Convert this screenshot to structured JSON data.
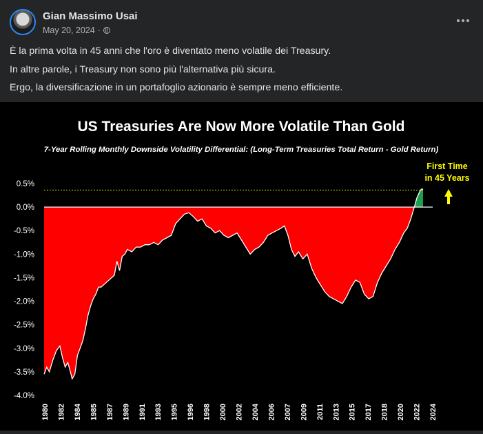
{
  "post": {
    "author": "Gian Massimo Usai",
    "date": "May 20, 2024",
    "separator": "·",
    "lines": [
      "È la prima volta in 45 anni che l'oro è diventato meno volatile dei Treasury.",
      "In altre parole, i Treasury non sono più l'alternativa più sicura.",
      "Ergo, la diversificazione in un portafoglio azionario è sempre meno efficiente."
    ]
  },
  "icons": {
    "globe": "globe-icon",
    "more": "more-options-icon",
    "arrow": "up-arrow-icon"
  },
  "chart_data": {
    "type": "area",
    "title": "US Treasuries Are Now More Volatile Than Gold",
    "subtitle": "7-Year Rolling Monthly Downside Volatility Differential: (Long-Term Treasuries Total Return - Gold Return)",
    "annotation": [
      "First Time",
      "in 45 Years"
    ],
    "x_tick_labels": [
      "1980",
      "1982",
      "1984",
      "1985",
      "1987",
      "1989",
      "1991",
      "1993",
      "1995",
      "1996",
      "1998",
      "2000",
      "2002",
      "2004",
      "2006",
      "2007",
      "2009",
      "2011",
      "2013",
      "2015",
      "2017",
      "2018",
      "2020",
      "2022",
      "2024"
    ],
    "y_ticks": [
      0.5,
      0.0,
      -0.5,
      -1.0,
      -1.5,
      -2.0,
      -2.5,
      -3.0,
      -3.5,
      -4.0
    ],
    "y_tick_labels": [
      "0.5%",
      "0.0%",
      "-0.5%",
      "-1.0%",
      "-1.5%",
      "-2.0%",
      "-2.5%",
      "-3.0%",
      "-3.5%",
      "-4.0%"
    ],
    "ylim": [
      -4.0,
      0.5
    ],
    "xlim": [
      1980,
      2024.3
    ],
    "reference_line": 0.36,
    "colors": {
      "negative": "#ff0000",
      "positive": "#1e9e4e",
      "annotation": "#ffff00",
      "reference": "#e6e600"
    },
    "series": [
      {
        "name": "Volatility Differential",
        "x": [
          1980.0,
          1980.3,
          1980.6,
          1981.0,
          1981.4,
          1981.8,
          1982.1,
          1982.4,
          1982.7,
          1983.0,
          1983.2,
          1983.5,
          1983.8,
          1984.1,
          1984.4,
          1984.7,
          1985.0,
          1985.3,
          1985.6,
          1985.9,
          1986.2,
          1986.5,
          1986.8,
          1987.1,
          1987.4,
          1987.7,
          1988.0,
          1988.3,
          1988.6,
          1988.9,
          1989.2,
          1989.5,
          1990.0,
          1990.5,
          1991.0,
          1991.5,
          1992.0,
          1992.5,
          1993.0,
          1993.5,
          1994.0,
          1994.5,
          1995.0,
          1995.5,
          1996.0,
          1996.5,
          1997.0,
          1997.5,
          1998.0,
          1998.5,
          1999.0,
          1999.5,
          2000.0,
          2000.5,
          2001.0,
          2001.5,
          2002.0,
          2002.5,
          2003.0,
          2003.5,
          2004.0,
          2004.5,
          2005.0,
          2005.5,
          2006.0,
          2006.5,
          2007.0,
          2007.4,
          2007.8,
          2008.2,
          2008.6,
          2009.0,
          2009.5,
          2010.0,
          2010.5,
          2011.0,
          2011.5,
          2012.0,
          2012.5,
          2013.0,
          2013.5,
          2014.0,
          2014.5,
          2015.0,
          2015.5,
          2016.0,
          2016.5,
          2017.0,
          2017.5,
          2018.0,
          2018.5,
          2019.0,
          2019.5,
          2020.0,
          2020.5,
          2021.0,
          2021.4,
          2021.8,
          2022.2,
          2022.5,
          2022.8,
          2023.0,
          2023.2
        ],
        "values": [
          -3.55,
          -3.4,
          -3.5,
          -3.25,
          -3.05,
          -2.95,
          -3.2,
          -3.4,
          -3.3,
          -3.5,
          -3.65,
          -3.55,
          -3.15,
          -3.0,
          -2.85,
          -2.6,
          -2.3,
          -2.1,
          -1.95,
          -1.85,
          -1.7,
          -1.7,
          -1.65,
          -1.6,
          -1.55,
          -1.5,
          -1.45,
          -1.15,
          -1.35,
          -1.05,
          -1.0,
          -0.9,
          -0.95,
          -0.85,
          -0.85,
          -0.8,
          -0.8,
          -0.75,
          -0.8,
          -0.7,
          -0.65,
          -0.6,
          -0.35,
          -0.25,
          -0.15,
          -0.12,
          -0.2,
          -0.3,
          -0.25,
          -0.4,
          -0.45,
          -0.55,
          -0.5,
          -0.6,
          -0.65,
          -0.6,
          -0.55,
          -0.7,
          -0.85,
          -1.0,
          -0.9,
          -0.85,
          -0.75,
          -0.6,
          -0.55,
          -0.5,
          -0.45,
          -0.4,
          -0.6,
          -0.9,
          -1.05,
          -0.95,
          -1.1,
          -1.0,
          -1.3,
          -1.5,
          -1.65,
          -1.8,
          -1.9,
          -1.95,
          -2.0,
          -2.05,
          -1.9,
          -1.7,
          -1.55,
          -1.6,
          -1.85,
          -1.95,
          -1.9,
          -1.6,
          -1.4,
          -1.25,
          -1.1,
          -0.9,
          -0.75,
          -0.55,
          -0.45,
          -0.25,
          0.0,
          0.2,
          0.32,
          0.38,
          0.38
        ]
      }
    ]
  }
}
